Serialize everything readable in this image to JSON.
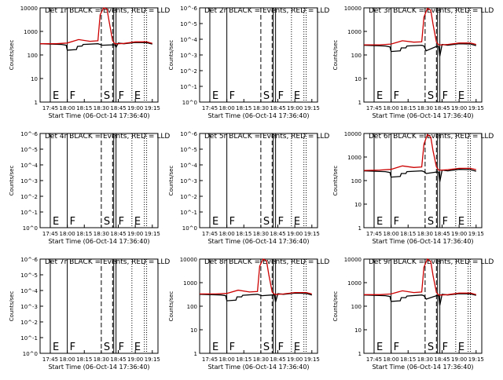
{
  "chart_data": [
    {
      "type": "line",
      "title": "Det 1r BLACK = Events, RED = LLD",
      "ylabel": "Counts/sec",
      "xlabel": "",
      "yscale": "log",
      "ylim": [
        1,
        10000
      ],
      "yticks": [
        "1",
        "10",
        "100",
        "1000",
        "10000"
      ],
      "xticks": [
        "17:45",
        "18:00",
        "18:15",
        "18:30",
        "18:45",
        "19:00",
        "19:15"
      ],
      "markers": [
        {
          "label": "E",
          "t": "17:45"
        },
        {
          "label": "F",
          "t": "18:00"
        },
        {
          "label": "S",
          "t": "18:30"
        },
        {
          "label": "F",
          "t": "18:43"
        },
        {
          "label": "E",
          "t": "18:57"
        }
      ],
      "series": [
        {
          "color": "#000000",
          "x": [
            "17:36",
            "17:55",
            "17:59",
            "18:00",
            "18:08",
            "18:09",
            "18:13",
            "18:14",
            "18:27",
            "18:29",
            "18:31",
            "18:40",
            "18:42",
            "18:43",
            "18:45",
            "18:50",
            "19:00",
            "19:10",
            "19:15"
          ],
          "y": [
            300,
            280,
            260,
            160,
            170,
            230,
            240,
            280,
            300,
            280,
            260,
            270,
            270,
            210,
            320,
            300,
            340,
            330,
            290
          ]
        },
        {
          "color": "#cc0000",
          "x": [
            "17:36",
            "17:50",
            "18:00",
            "18:10",
            "18:20",
            "18:27",
            "18:29",
            "18:32",
            "18:35",
            "18:37",
            "18:40",
            "18:42",
            "18:45",
            "18:50",
            "19:00",
            "19:10",
            "19:15"
          ],
          "y": [
            300,
            300,
            320,
            450,
            380,
            400,
            5000,
            11000,
            9000,
            2500,
            400,
            300,
            300,
            310,
            360,
            360,
            310
          ]
        }
      ]
    },
    {
      "type": "line",
      "title": "Det 2r BLACK = Events, RED = LLD",
      "ylabel": "Counts/sec",
      "xlabel": "",
      "yscale": "log",
      "ylim": [
        1,
        1e-06
      ],
      "yticks": [
        "10^0",
        "10^-1",
        "10^-2",
        "10^-3",
        "10^-4",
        "10^-5",
        "10^-6"
      ],
      "xticks": [
        "17:45",
        "18:00",
        "18:15",
        "18:30",
        "18:45",
        "19:00",
        "19:15"
      ],
      "markers": [
        {
          "label": "E",
          "t": "17:45"
        },
        {
          "label": "F",
          "t": "18:00"
        },
        {
          "label": "S",
          "t": "18:30"
        },
        {
          "label": "F",
          "t": "18:43"
        },
        {
          "label": "E",
          "t": "18:57"
        }
      ],
      "series": []
    },
    {
      "type": "line",
      "title": "Det 3r BLACK = Events, RED = LLD",
      "ylabel": "Counts/sec",
      "xlabel": "",
      "yscale": "log",
      "ylim": [
        1,
        10000
      ],
      "yticks": [
        "1",
        "10",
        "100",
        "1000",
        "10000"
      ],
      "xticks": [
        "17:45",
        "18:00",
        "18:15",
        "18:30",
        "18:45",
        "19:00",
        "19:15"
      ],
      "markers": [
        {
          "label": "E",
          "t": "17:45"
        },
        {
          "label": "F",
          "t": "18:00"
        },
        {
          "label": "S",
          "t": "18:30"
        },
        {
          "label": "F",
          "t": "18:43"
        },
        {
          "label": "E",
          "t": "18:57"
        }
      ],
      "series": [
        {
          "color": "#000000",
          "x": [
            "17:36",
            "17:55",
            "17:59",
            "18:00",
            "18:08",
            "18:09",
            "18:13",
            "18:14",
            "18:27",
            "18:29",
            "18:31",
            "18:40",
            "18:42",
            "18:43",
            "18:45",
            "18:50",
            "19:00",
            "19:10",
            "19:15"
          ],
          "y": [
            260,
            240,
            220,
            140,
            150,
            200,
            200,
            240,
            260,
            240,
            150,
            230,
            230,
            90,
            280,
            260,
            300,
            290,
            250
          ]
        },
        {
          "color": "#cc0000",
          "x": [
            "17:36",
            "17:50",
            "18:00",
            "18:10",
            "18:20",
            "18:27",
            "18:29",
            "18:32",
            "18:35",
            "18:37",
            "18:40",
            "18:42",
            "18:45",
            "18:50",
            "19:00",
            "19:10",
            "19:15"
          ],
          "y": [
            270,
            270,
            290,
            400,
            350,
            360,
            4000,
            9500,
            8000,
            2000,
            350,
            270,
            270,
            280,
            320,
            320,
            280
          ]
        }
      ]
    },
    {
      "type": "line",
      "title": "Det 4r BLACK = Events, RED = LLD",
      "ylabel": "Counts/sec",
      "xlabel": "",
      "yscale": "log",
      "ylim": [
        1,
        1e-06
      ],
      "yticks": [
        "10^0",
        "10^-1",
        "10^-2",
        "10^-3",
        "10^-4",
        "10^-5",
        "10^-6"
      ],
      "xticks": [
        "17:45",
        "18:00",
        "18:15",
        "18:30",
        "18:45",
        "19:00",
        "19:15"
      ],
      "markers": [
        {
          "label": "E",
          "t": "17:45"
        },
        {
          "label": "F",
          "t": "18:00"
        },
        {
          "label": "S",
          "t": "18:30"
        },
        {
          "label": "F",
          "t": "18:43"
        },
        {
          "label": "E",
          "t": "18:57"
        }
      ],
      "series": []
    },
    {
      "type": "line",
      "title": "Det 5r BLACK = Events, RED = LLD",
      "ylabel": "Counts/sec",
      "xlabel": "",
      "yscale": "log",
      "ylim": [
        1,
        1e-06
      ],
      "yticks": [
        "10^0",
        "10^-1",
        "10^-2",
        "10^-3",
        "10^-4",
        "10^-5",
        "10^-6"
      ],
      "xticks": [
        "17:45",
        "18:00",
        "18:15",
        "18:30",
        "18:45",
        "19:00",
        "19:15"
      ],
      "markers": [
        {
          "label": "E",
          "t": "17:45"
        },
        {
          "label": "F",
          "t": "18:00"
        },
        {
          "label": "S",
          "t": "18:30"
        },
        {
          "label": "F",
          "t": "18:43"
        },
        {
          "label": "E",
          "t": "18:57"
        }
      ],
      "series": []
    },
    {
      "type": "line",
      "title": "Det 6r BLACK = Events, RED = LLD",
      "ylabel": "Counts/sec",
      "xlabel": "",
      "yscale": "log",
      "ylim": [
        1,
        10000
      ],
      "yticks": [
        "1",
        "10",
        "100",
        "1000",
        "10000"
      ],
      "xticks": [
        "17:45",
        "18:00",
        "18:15",
        "18:30",
        "18:45",
        "19:00",
        "19:15"
      ],
      "markers": [
        {
          "label": "E",
          "t": "17:45"
        },
        {
          "label": "F",
          "t": "18:00"
        },
        {
          "label": "S",
          "t": "18:30"
        },
        {
          "label": "F",
          "t": "18:43"
        },
        {
          "label": "E",
          "t": "18:57"
        }
      ],
      "series": [
        {
          "color": "#000000",
          "x": [
            "17:36",
            "17:55",
            "17:59",
            "18:00",
            "18:08",
            "18:09",
            "18:13",
            "18:14",
            "18:27",
            "18:29",
            "18:31",
            "18:40",
            "18:42",
            "18:43",
            "18:45",
            "18:50",
            "19:00",
            "19:10",
            "19:15"
          ],
          "y": [
            260,
            240,
            220,
            140,
            150,
            200,
            200,
            240,
            260,
            240,
            200,
            230,
            230,
            90,
            280,
            260,
            300,
            290,
            250
          ]
        },
        {
          "color": "#cc0000",
          "x": [
            "17:36",
            "17:50",
            "18:00",
            "18:10",
            "18:20",
            "18:27",
            "18:29",
            "18:32",
            "18:35",
            "18:37",
            "18:40",
            "18:42",
            "18:45",
            "18:50",
            "19:00",
            "19:10",
            "19:15"
          ],
          "y": [
            270,
            280,
            300,
            420,
            360,
            380,
            3500,
            9000,
            7000,
            1800,
            380,
            280,
            280,
            290,
            330,
            330,
            290
          ]
        }
      ]
    },
    {
      "type": "line",
      "title": "Det 7r BLACK = Events, RED = LLD",
      "ylabel": "Counts/sec",
      "xlabel": "",
      "yscale": "log",
      "ylim": [
        1,
        1e-06
      ],
      "yticks": [
        "10^0",
        "10^-1",
        "10^-2",
        "10^-3",
        "10^-4",
        "10^-5",
        "10^-6"
      ],
      "xticks": [
        "17:45",
        "18:00",
        "18:15",
        "18:30",
        "18:45",
        "19:00",
        "19:15"
      ],
      "markers": [
        {
          "label": "E",
          "t": "17:45"
        },
        {
          "label": "F",
          "t": "18:00"
        },
        {
          "label": "S",
          "t": "18:30"
        },
        {
          "label": "F",
          "t": "18:43"
        },
        {
          "label": "E",
          "t": "18:57"
        }
      ],
      "series": []
    },
    {
      "type": "line",
      "title": "Det 8r BLACK = Events, RED = LLD",
      "ylabel": "Counts/sec",
      "xlabel": "",
      "yscale": "log",
      "ylim": [
        1,
        10000
      ],
      "yticks": [
        "1",
        "10",
        "100",
        "1000",
        "10000"
      ],
      "xticks": [
        "17:45",
        "18:00",
        "18:15",
        "18:30",
        "18:45",
        "19:00",
        "19:15"
      ],
      "markers": [
        {
          "label": "E",
          "t": "17:45"
        },
        {
          "label": "F",
          "t": "18:00"
        },
        {
          "label": "S",
          "t": "18:30"
        },
        {
          "label": "F",
          "t": "18:43"
        },
        {
          "label": "E",
          "t": "18:57"
        }
      ],
      "series": [
        {
          "color": "#000000",
          "x": [
            "17:36",
            "17:55",
            "17:59",
            "18:00",
            "18:08",
            "18:09",
            "18:13",
            "18:14",
            "18:27",
            "18:29",
            "18:31",
            "18:40",
            "18:42",
            "18:43",
            "18:45",
            "18:50",
            "19:00",
            "19:10",
            "19:15"
          ],
          "y": [
            320,
            300,
            280,
            170,
            180,
            250,
            250,
            290,
            320,
            300,
            280,
            300,
            300,
            150,
            340,
            320,
            360,
            350,
            300
          ]
        },
        {
          "color": "#cc0000",
          "x": [
            "17:36",
            "17:50",
            "18:00",
            "18:10",
            "18:20",
            "18:27",
            "18:29",
            "18:32",
            "18:35",
            "18:37",
            "18:40",
            "18:42",
            "18:45",
            "18:50",
            "19:00",
            "19:10",
            "19:15"
          ],
          "y": [
            330,
            330,
            350,
            480,
            400,
            420,
            5000,
            10000,
            8500,
            2200,
            400,
            320,
            320,
            330,
            380,
            380,
            330
          ]
        }
      ]
    },
    {
      "type": "line",
      "title": "Det 9r BLACK = Events, RED = LLD",
      "ylabel": "Counts/sec",
      "xlabel": "",
      "yscale": "log",
      "ylim": [
        1,
        10000
      ],
      "yticks": [
        "1",
        "10",
        "100",
        "1000",
        "10000"
      ],
      "xticks": [
        "17:45",
        "18:00",
        "18:15",
        "18:30",
        "18:45",
        "19:00",
        "19:15"
      ],
      "markers": [
        {
          "label": "E",
          "t": "17:45"
        },
        {
          "label": "F",
          "t": "18:00"
        },
        {
          "label": "S",
          "t": "18:30"
        },
        {
          "label": "F",
          "t": "18:43"
        },
        {
          "label": "E",
          "t": "18:57"
        }
      ],
      "series": [
        {
          "color": "#000000",
          "x": [
            "17:36",
            "17:55",
            "17:59",
            "18:00",
            "18:08",
            "18:09",
            "18:13",
            "18:14",
            "18:27",
            "18:29",
            "18:31",
            "18:40",
            "18:42",
            "18:43",
            "18:45",
            "18:50",
            "19:00",
            "19:10",
            "19:15"
          ],
          "y": [
            300,
            280,
            260,
            160,
            170,
            230,
            230,
            270,
            300,
            280,
            200,
            280,
            280,
            110,
            320,
            300,
            340,
            330,
            290
          ]
        },
        {
          "color": "#cc0000",
          "x": [
            "17:36",
            "17:50",
            "18:00",
            "18:10",
            "18:20",
            "18:27",
            "18:29",
            "18:32",
            "18:35",
            "18:37",
            "18:40",
            "18:42",
            "18:45",
            "18:50",
            "19:00",
            "19:10",
            "19:15"
          ],
          "y": [
            310,
            310,
            330,
            450,
            380,
            400,
            4500,
            10000,
            8000,
            2000,
            380,
            300,
            300,
            310,
            360,
            360,
            310
          ]
        }
      ]
    }
  ],
  "xlabels": {
    "row0": "Start Time (06-Oct-14 17:36:40)",
    "row1": "Start Time (06-Oct-14 17:36:40)",
    "row2": "Start Time (06-Oct-14 17:36:40)"
  }
}
